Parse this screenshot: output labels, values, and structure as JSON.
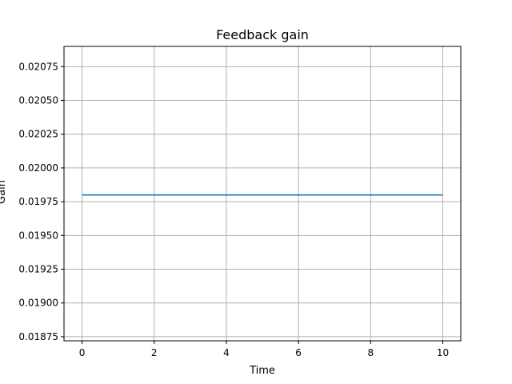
{
  "chart_data": {
    "type": "line",
    "title": "Feedback gain",
    "xlabel": "Time",
    "ylabel": "Gain",
    "xlim": [
      -0.5,
      10.5
    ],
    "ylim": [
      0.01872,
      0.0209
    ],
    "xticks": [
      0,
      2,
      4,
      6,
      8,
      10
    ],
    "xtick_labels": [
      "0",
      "2",
      "4",
      "6",
      "8",
      "10"
    ],
    "yticks": [
      0.01875,
      0.019,
      0.01925,
      0.0195,
      0.01975,
      0.02,
      0.02025,
      0.0205,
      0.02075
    ],
    "ytick_labels": [
      "0.01875",
      "0.01900",
      "0.01925",
      "0.01950",
      "0.01975",
      "0.02000",
      "0.02025",
      "0.02050",
      "0.02075"
    ],
    "grid": true,
    "series": [
      {
        "x": [
          0,
          10
        ],
        "y": [
          0.0198,
          0.0198
        ],
        "color": "#1f77b4"
      }
    ]
  }
}
